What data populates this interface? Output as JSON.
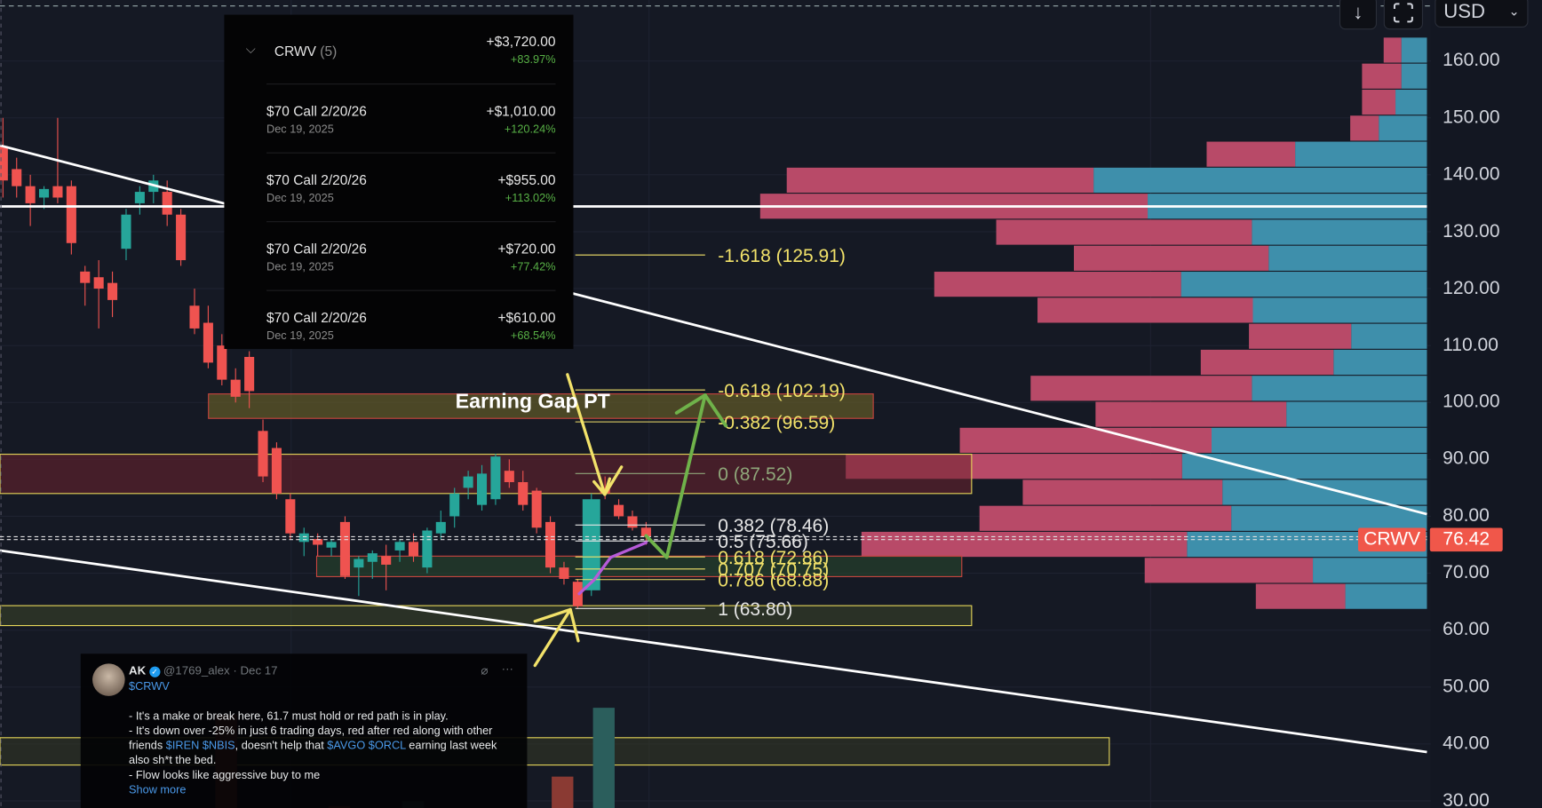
{
  "toolbar": {
    "scroll_down_icon": "arrow-down-icon",
    "fullscreen_icon": "fullscreen-icon",
    "currency": "USD"
  },
  "price_axis": {
    "ticks": [
      "160.00",
      "150.00",
      "140.00",
      "130.00",
      "120.00",
      "110.00",
      "100.00",
      "90.00",
      "80.00",
      "70.00",
      "60.00",
      "50.00",
      "40.00",
      "30.00"
    ],
    "tick_values": [
      160,
      150,
      140,
      130,
      120,
      110,
      100,
      90,
      80,
      70,
      60,
      50,
      40,
      30
    ]
  },
  "last_price": {
    "symbol": "CRWV",
    "value": "76.42",
    "price": 76.42,
    "color": "#f0574a"
  },
  "colors": {
    "up": "#26a69a",
    "down": "#ef5350",
    "profile_sell": "#b84a68",
    "profile_buy": "#3e8fab",
    "fib_yellow": "#f2e26a",
    "fib_white": "#e6e6e6",
    "fib_zero": "#8fa77a"
  },
  "annotation": {
    "text": "Earning Gap PT"
  },
  "fib_levels": [
    {
      "label": "-1.618 (125.91)",
      "price": 125.91,
      "color": "yellow"
    },
    {
      "label": "-0.618 (102.19)",
      "price": 102.19,
      "color": "yellow"
    },
    {
      "label": "-0.382 (96.59)",
      "price": 96.59,
      "color": "yellow"
    },
    {
      "label": "0 (87.52)",
      "price": 87.52,
      "color": "zero"
    },
    {
      "label": "0.382 (78.46)",
      "price": 78.46,
      "color": "white"
    },
    {
      "label": "0.5 (75.66)",
      "price": 75.66,
      "color": "white"
    },
    {
      "label": "0.618 (72.86)",
      "price": 72.86,
      "color": "yellow"
    },
    {
      "label": "0.707 (70.75)",
      "price": 70.75,
      "color": "yellow"
    },
    {
      "label": "0.786 (68.88)",
      "price": 68.88,
      "color": "yellow"
    },
    {
      "label": "1 (63.80)",
      "price": 63.8,
      "color": "white"
    }
  ],
  "zones": [
    {
      "name": "earning-gap-zone",
      "high": 101.5,
      "low": 97.2,
      "fill": "rgba(120,110,40,0.55)",
      "border": "#c9453f"
    },
    {
      "name": "resistance-zone",
      "high": 90.9,
      "low": 84.0,
      "fill": "rgba(110,35,45,0.55)",
      "border": "#e8d85a"
    },
    {
      "name": "support-zone",
      "high": 73.0,
      "low": 69.4,
      "fill": "rgba(40,70,45,0.6)",
      "border": "#c9453f"
    },
    {
      "name": "fib-one-zone",
      "high": 64.3,
      "low": 60.8,
      "fill": "rgba(60,70,40,0.55)",
      "border": "#e8d85a"
    },
    {
      "name": "lower-zone",
      "high": 41.1,
      "low": 36.3,
      "fill": "rgba(55,60,35,0.5)",
      "border": "#e8d85a"
    }
  ],
  "candles": [
    {
      "o": 145,
      "h": 150,
      "l": 136,
      "c": 139
    },
    {
      "o": 141,
      "h": 143,
      "l": 136,
      "c": 138
    },
    {
      "o": 138,
      "h": 140,
      "l": 131,
      "c": 135
    },
    {
      "o": 136,
      "h": 138,
      "l": 134,
      "c": 137.5
    },
    {
      "o": 138,
      "h": 150,
      "l": 135,
      "c": 136
    },
    {
      "o": 138,
      "h": 139,
      "l": 126,
      "c": 128
    },
    {
      "o": 123,
      "h": 124,
      "l": 117,
      "c": 121
    },
    {
      "o": 122,
      "h": 125,
      "l": 113,
      "c": 120
    },
    {
      "o": 121,
      "h": 123,
      "l": 115,
      "c": 118
    },
    {
      "o": 127,
      "h": 134,
      "l": 125,
      "c": 133
    },
    {
      "o": 135,
      "h": 138,
      "l": 133,
      "c": 137
    },
    {
      "o": 137,
      "h": 140,
      "l": 135,
      "c": 139
    },
    {
      "o": 137,
      "h": 139,
      "l": 131,
      "c": 133
    },
    {
      "o": 133,
      "h": 134,
      "l": 124,
      "c": 125
    },
    {
      "o": 117,
      "h": 120,
      "l": 112,
      "c": 113
    },
    {
      "o": 114,
      "h": 117,
      "l": 106,
      "c": 107
    },
    {
      "o": 110,
      "h": 112,
      "l": 103,
      "c": 104
    },
    {
      "o": 104,
      "h": 106,
      "l": 100,
      "c": 101
    },
    {
      "o": 108,
      "h": 109,
      "l": 99,
      "c": 102
    },
    {
      "o": 95,
      "h": 97,
      "l": 86,
      "c": 87
    },
    {
      "o": 92,
      "h": 93,
      "l": 83,
      "c": 84
    },
    {
      "o": 83,
      "h": 84,
      "l": 76,
      "c": 77
    },
    {
      "o": 75.5,
      "h": 78,
      "l": 73,
      "c": 77
    },
    {
      "o": 76,
      "h": 77,
      "l": 73,
      "c": 75
    },
    {
      "o": 74.5,
      "h": 76,
      "l": 73,
      "c": 75.5
    },
    {
      "o": 79,
      "h": 80,
      "l": 69,
      "c": 69.5
    },
    {
      "o": 71,
      "h": 73,
      "l": 66,
      "c": 72.5
    },
    {
      "o": 72,
      "h": 74,
      "l": 69,
      "c": 73.5
    },
    {
      "o": 73,
      "h": 75,
      "l": 67,
      "c": 71.5
    },
    {
      "o": 74,
      "h": 76,
      "l": 72,
      "c": 75.5
    },
    {
      "o": 75.5,
      "h": 77,
      "l": 72,
      "c": 73
    },
    {
      "o": 71,
      "h": 78,
      "l": 70,
      "c": 77.5
    },
    {
      "o": 77,
      "h": 81,
      "l": 76,
      "c": 79
    },
    {
      "o": 80,
      "h": 85,
      "l": 78,
      "c": 84
    },
    {
      "o": 85,
      "h": 88,
      "l": 83,
      "c": 87
    },
    {
      "o": 82,
      "h": 89,
      "l": 81,
      "c": 87.5
    },
    {
      "o": 83,
      "h": 91,
      "l": 82,
      "c": 90.5
    },
    {
      "o": 88,
      "h": 90,
      "l": 85,
      "c": 86
    },
    {
      "o": 86,
      "h": 88,
      "l": 81,
      "c": 82
    },
    {
      "o": 84.5,
      "h": 85,
      "l": 77,
      "c": 78
    },
    {
      "o": 79,
      "h": 80,
      "l": 70,
      "c": 71
    },
    {
      "o": 71,
      "h": 72,
      "l": 68,
      "c": 69
    },
    {
      "o": 68.5,
      "h": 69,
      "l": 63.8,
      "c": 64.2
    },
    {
      "o": 67,
      "h": 84,
      "l": 66,
      "c": 83
    },
    {
      "o": 85,
      "h": 87,
      "l": 83,
      "c": 84
    },
    {
      "o": 82,
      "h": 83,
      "l": 79.5,
      "c": 80
    },
    {
      "o": 80,
      "h": 81,
      "l": 77.5,
      "c": 78
    },
    {
      "o": 78,
      "h": 79,
      "l": 75,
      "c": 76.4
    }
  ],
  "volume_profile": {
    "rows_top_price": 164.1,
    "row_step": 4.57,
    "sell": [
      18,
      40,
      34,
      29,
      90,
      312,
      394,
      260,
      198,
      251,
      219,
      104,
      135,
      225,
      194,
      256,
      342,
      203,
      256,
      331,
      171,
      91
    ],
    "buy": [
      26,
      26,
      32,
      49,
      134,
      339,
      284,
      178,
      161,
      250,
      177,
      77,
      95,
      178,
      143,
      219,
      249,
      208,
      199,
      244,
      116,
      83
    ]
  },
  "positions": {
    "group": {
      "symbol": "CRWV",
      "count": "(5)",
      "pnl": "+$3,720.00",
      "pct": "+83.97%"
    },
    "items": [
      {
        "name": "$70 Call 2/20/26",
        "date": "Dec 19, 2025",
        "pnl": "+$1,010.00",
        "pct": "+120.24%"
      },
      {
        "name": "$70 Call 2/20/26",
        "date": "Dec 19, 2025",
        "pnl": "+$955.00",
        "pct": "+113.02%"
      },
      {
        "name": "$70 Call 2/20/26",
        "date": "Dec 19, 2025",
        "pnl": "+$720.00",
        "pct": "+77.42%"
      },
      {
        "name": "$70 Call 2/20/26",
        "date": "Dec 19, 2025",
        "pnl": "+$610.00",
        "pct": "+68.54%"
      }
    ]
  },
  "tweet": {
    "author": "AK",
    "handle": "@1769_alex",
    "date": "· Dec 17",
    "cashtag": "$CRWV",
    "line1": "- It's a make or break here, 61.7 must hold or red path is in play.",
    "line2": "- It's down over -25% in just 6 trading days, red after red along with other",
    "line3a": "friends ",
    "tag1": "$IREN $NBIS",
    "line3b": ", doesn't help that ",
    "tag2": "$AVGO $ORCL",
    "line3c": " earning last week",
    "line4": "also sh*t the bed.",
    "line5": "- Flow looks like aggressive buy to me",
    "show_more": "Show more"
  }
}
